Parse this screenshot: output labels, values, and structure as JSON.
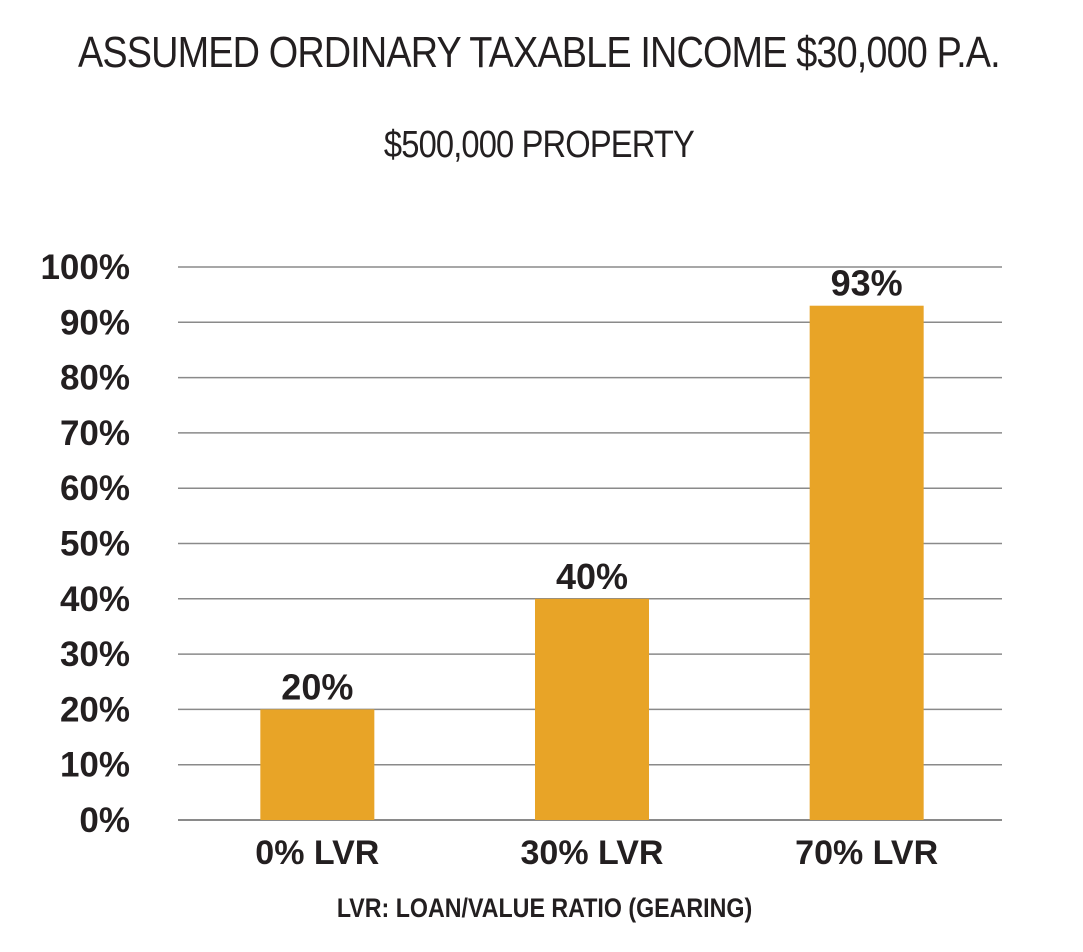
{
  "chart_data": {
    "type": "bar",
    "title": "ASSUMED ORDINARY TAXABLE INCOME $30,000 P.A.",
    "subtitle": "$500,000 PROPERTY",
    "xlabel": "LVR: LOAN/VALUE RATIO (GEARING)",
    "ylabel": "",
    "categories": [
      "0% LVR",
      "30% LVR",
      "70% LVR"
    ],
    "values": [
      20,
      40,
      93
    ],
    "data_labels": [
      "20%",
      "40%",
      "93%"
    ],
    "y_ticks": [
      0,
      10,
      20,
      30,
      40,
      50,
      60,
      70,
      80,
      90,
      100
    ],
    "y_tick_labels": [
      "0%",
      "10%",
      "20%",
      "30%",
      "40%",
      "50%",
      "60%",
      "70%",
      "80%",
      "90%",
      "100%"
    ],
    "ylim": [
      0,
      100
    ],
    "grid": true,
    "legend": "none",
    "bar_color": "#e8a427",
    "grid_color": "#8a8a8a"
  }
}
